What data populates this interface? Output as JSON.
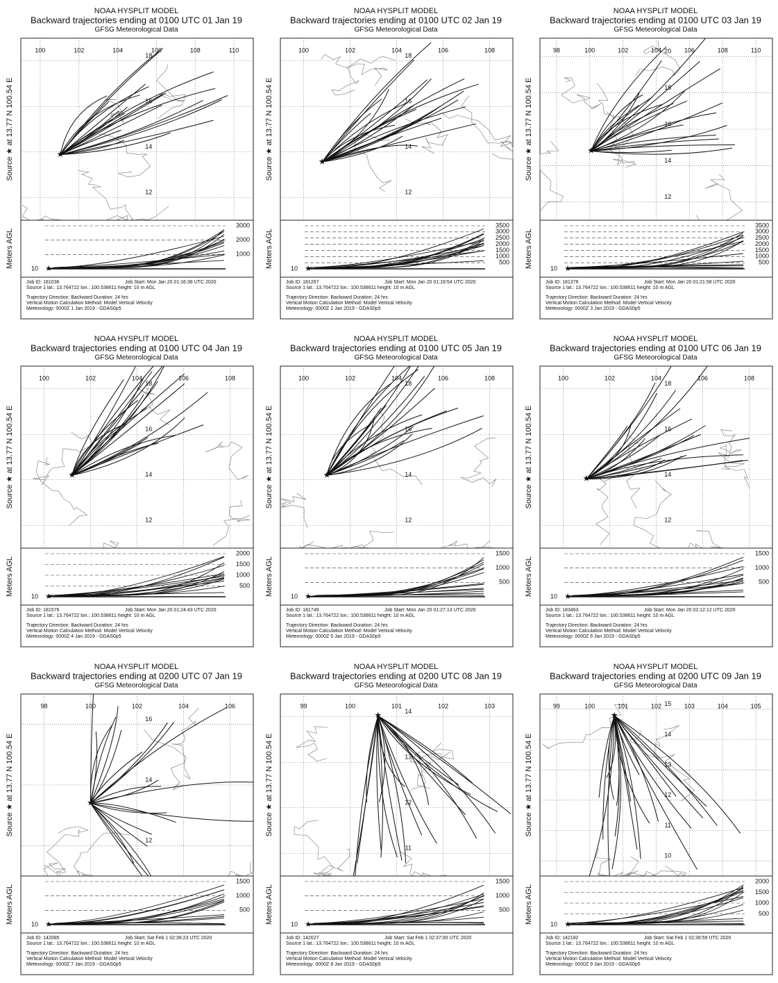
{
  "panels": [
    {
      "title": "NOAA HYSPLIT MODEL",
      "subtitle": "Backward trajectories ending at 0100 UTC 01 Jan 19",
      "met": "GFSG Meteorological Data",
      "source_label": "Source ★ at 13.77 N 100.54 E",
      "lon_labels": [
        100,
        102,
        104,
        106,
        108,
        110
      ],
      "lat_labels": [
        18,
        16,
        14,
        12
      ],
      "height_label": "Meters AGL",
      "height_ticks": [
        3000,
        2000,
        1000
      ],
      "source_height": 10,
      "job_id": "Job ID: 181036",
      "job_start": "Job Start: Mon Jan 20 01:16:38 UTC 2020",
      "source_line": "Source 1     lat.: 13.764722    lon.: 100.538611    height: 10 m AGL",
      "direction_line": "Trajectory Direction: Backward     Duration: 24 hrs",
      "method_line": "Vertical Motion Calculation Method:     Model Vertical Velocity",
      "meteorology_line": "Meteorology: 0000Z  1 Jan 2019 - GDAS0p5"
    },
    {
      "title": "NOAA HYSPLIT MODEL",
      "subtitle": "Backward trajectories ending at 0100 UTC 02 Jan 19",
      "met": "GFSG Meteorological Data",
      "source_label": "Source ★ at 13.77 N 100.54 E",
      "lon_labels": [
        100,
        102,
        104,
        106,
        108
      ],
      "lat_labels": [
        18,
        16,
        14,
        12
      ],
      "height_label": "Meters AGL",
      "height_ticks": [
        3500,
        3000,
        2500,
        2000,
        1500,
        1000,
        500
      ],
      "source_height": 10,
      "job_id": "Job ID: 181267",
      "job_start": "Job Start: Mon Jan 20 01:19:54 UTC 2020",
      "source_line": "Source 1     lat.: 13.764722    lon.: 100.538611    height: 10 m AGL",
      "direction_line": "Trajectory Direction: Backward     Duration: 24 hrs",
      "method_line": "Vertical Motion Calculation Method:     Model Vertical Velocity",
      "meteorology_line": "Meteorology: 0000Z  2 Jan 2019 - GDAS0p5"
    },
    {
      "title": "NOAA HYSPLIT MODEL",
      "subtitle": "Backward trajectories ending at 0100 UTC 03 Jan 19",
      "met": "GFSG Meteorological Data",
      "source_label": "Source ★ at 13.77 N 100.54 E",
      "lon_labels": [
        98,
        100,
        102,
        104,
        106,
        108,
        110
      ],
      "lat_labels": [
        20,
        18,
        16,
        14,
        12
      ],
      "height_label": "Meters AGL",
      "height_ticks": [
        3500,
        3000,
        2500,
        2000,
        1500,
        1000,
        500
      ],
      "source_height": 10,
      "job_id": "Job ID: 181376",
      "job_start": "Job Start: Mon Jan 20 01:21:58 UTC 2020",
      "source_line": "Source 1     lat.: 13.764722    lon.: 100.538611    height: 10 m AGL",
      "direction_line": "Trajectory Direction: Backward     Duration: 24 hrs",
      "method_line": "Vertical Motion Calculation Method:     Model Vertical Velocity",
      "meteorology_line": "Meteorology: 0000Z  3 Jan 2019 - GDAS0p5"
    },
    {
      "title": "NOAA HYSPLIT MODEL",
      "subtitle": "Backward trajectories ending at 0100 UTC 04 Jan 19",
      "met": "GFSG Meteorological Data",
      "source_label": "Source ★ at 13.77 N 100.54 E",
      "lon_labels": [
        100,
        102,
        104,
        106,
        108
      ],
      "lat_labels": [
        18,
        16,
        14,
        12
      ],
      "height_label": "Meters AGL",
      "height_ticks": [
        2000,
        1500,
        1000,
        500
      ],
      "source_height": 10,
      "job_id": "Job ID: 181576",
      "job_start": "Job Start: Mon Jan 20 01:24:43 UTC 2020",
      "source_line": "Source 1     lat.: 13.764722    lon.: 100.538611    height: 10 m AGL",
      "direction_line": "Trajectory Direction: Backward     Duration: 24 hrs",
      "method_line": "Vertical Motion Calculation Method:     Model Vertical Velocity",
      "meteorology_line": "Meteorology: 0000Z  4 Jan 2019 - GDAS0p5"
    },
    {
      "title": "NOAA HYSPLIT MODEL",
      "subtitle": "Backward trajectories ending at 0100 UTC 05 Jan 19",
      "met": "GFSG Meteorological Data",
      "source_label": "Source ★ at 13.77 N 100.54 E",
      "lon_labels": [
        100,
        102,
        104,
        106,
        108
      ],
      "lat_labels": [
        18,
        16,
        14,
        12
      ],
      "height_label": "Meters AGL",
      "height_ticks": [
        1500,
        1000,
        500
      ],
      "source_height": 10,
      "job_id": "Job ID: 181749",
      "job_start": "Job Start: Mon Jan 20 01:27:13 UTC 2020",
      "source_line": "Source 1     lat.: 13.764722    lon.: 100.538611    height: 10 m AGL",
      "direction_line": "Trajectory Direction: Backward     Duration: 24 hrs",
      "method_line": "Vertical Motion Calculation Method:     Model Vertical Velocity",
      "meteorology_line": "Meteorology: 0000Z  5 Jan 2019 - GDAS0p5"
    },
    {
      "title": "NOAA HYSPLIT MODEL",
      "subtitle": "Backward trajectories ending at 0100 UTC 06 Jan 19",
      "met": "GFSG Meteorological Data",
      "source_label": "Source ★ at 13.77 N 100.54 E",
      "lon_labels": [
        100,
        102,
        104,
        106,
        108
      ],
      "lat_labels": [
        18,
        16,
        14,
        12
      ],
      "height_label": "Meters AGL",
      "height_ticks": [
        1500,
        1000,
        500
      ],
      "source_height": 10,
      "job_id": "Job ID: 183463",
      "job_start": "Job Start: Mon Jan 20 02:12:12 UTC 2020",
      "source_line": "Source 1     lat.: 13.764722    lon.: 100.538611    height: 10 m AGL",
      "direction_line": "Trajectory Direction: Backward     Duration: 24 hrs",
      "method_line": "Vertical Motion Calculation Method:     Model Vertical Velocity",
      "meteorology_line": "Meteorology: 0000Z  6 Jan 2019 - GDAS0p5"
    },
    {
      "title": "NOAA HYSPLIT MODEL",
      "subtitle": "Backward trajectories ending at 0200 UTC 07 Jan 19",
      "met": "GFSG Meteorological Data",
      "source_label": "Source ★ at 13.77 N 100.54 E",
      "lon_labels": [
        98,
        100,
        102,
        104,
        106
      ],
      "lat_labels": [
        16,
        14,
        12
      ],
      "height_label": "Meters AGL",
      "height_ticks": [
        1500,
        1000,
        500
      ],
      "source_height": 10,
      "job_id": "Job ID: 142085",
      "job_start": "Job Start: Sat Feb  1 02:36:23 UTC 2020",
      "source_line": "Source 1     lat.: 13.764722    lon.: 100.538611    height: 10 m AGL",
      "direction_line": "Trajectory Direction: Backward     Duration: 24 hrs",
      "method_line": "Vertical Motion Calculation Method:     Model Vertical Velocity",
      "meteorology_line": "Meteorology: 0000Z  7 Jan 2019 - GDAS0p5"
    },
    {
      "title": "NOAA HYSPLIT MODEL",
      "subtitle": "Backward trajectories ending at 0200 UTC 08 Jan 19",
      "met": "GFSG Meteorological Data",
      "source_label": "Source ★ at 13.77 N 100.54 E",
      "lon_labels": [
        99,
        100,
        101,
        102,
        103
      ],
      "lat_labels": [
        14,
        13,
        12,
        11
      ],
      "height_label": "Meters AGL",
      "height_ticks": [
        1500,
        1000,
        500
      ],
      "source_height": 10,
      "job_id": "Job ID: 142027",
      "job_start": "Job Start: Sat Feb  1 02:37:00 UTC 2020",
      "source_line": "Source 1     lat.: 13.764722    lon.: 100.538611    height: 10 m AGL",
      "direction_line": "Trajectory Direction: Backward     Duration: 24 hrs",
      "method_line": "Vertical Motion Calculation Method:     Model Vertical Velocity",
      "meteorology_line": "Meteorology: 0000Z  8 Jan 2019 - GDAS0p5"
    },
    {
      "title": "NOAA HYSPLIT MODEL",
      "subtitle": "Backward trajectories ending at 0200 UTC 09 Jan 19",
      "met": "GFSG Meteorological Data",
      "source_label": "Source ★ at 13.77 N 100.54 E",
      "lon_labels": [
        99,
        100,
        101,
        102,
        103,
        104,
        105
      ],
      "lat_labels": [
        15,
        14,
        13,
        12,
        11,
        10
      ],
      "height_label": "Meters AGL",
      "height_ticks": [
        2000,
        1500,
        1000,
        500
      ],
      "source_height": 10,
      "job_id": "Job ID: 142182",
      "job_start": "Job Start: Sat Feb  1 02:38:59 UTC 2020",
      "source_line": "Source 1     lat.: 13.764722    lon.: 100.538611    height: 10 m AGL",
      "direction_line": "Trajectory Direction: Backward     Duration: 24 hrs",
      "method_line": "Vertical Motion Calculation Method:     Model Vertical Velocity",
      "meteorology_line": "Meteorology: 0000Z  9 Jan 2019 - GDAS0p5"
    }
  ]
}
